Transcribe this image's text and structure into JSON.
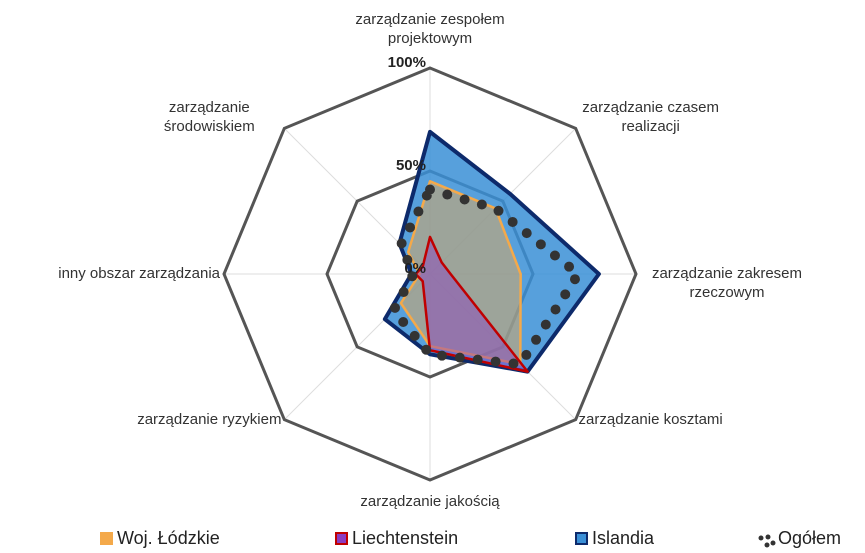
{
  "chart_data": {
    "type": "radar",
    "categories": [
      "zarządzanie zespołem projektowym",
      "zarządzanie czasem realizacji",
      "zarządzanie zakresem rzeczowym",
      "zarządzanie kosztami",
      "zarządzanie jakością",
      "zarządzanie ryzykiem",
      "inny obszar zarządzania",
      "zarządzanie środowiskiem"
    ],
    "ylim": [
      0,
      100
    ],
    "yticks": [
      {
        "value": 0,
        "label": "0%"
      },
      {
        "value": 50,
        "label": "50%"
      },
      {
        "value": 100,
        "label": "100%"
      }
    ],
    "series": [
      {
        "name": "Islandia",
        "color": "#0d2a6b",
        "fill": "#3a8fd6",
        "values": [
          69,
          55,
          82,
          67,
          39,
          31,
          9,
          21
        ]
      },
      {
        "name": "Woj. Łódzkie",
        "color": "#f4a94a",
        "fill": "#f4a94a",
        "values": [
          45,
          45,
          44,
          62,
          35,
          20,
          5,
          15
        ]
      },
      {
        "name": "Liechtenstein",
        "color": "#c00000",
        "fill": "#8a3cc0",
        "values": [
          18,
          8,
          10,
          67,
          37,
          5,
          7,
          5
        ]
      },
      {
        "name": "Ogółem",
        "color": "#333333",
        "line_style": "dotted",
        "values": [
          41,
          45,
          72,
          62,
          39,
          25,
          8,
          20
        ]
      }
    ],
    "legend_order": [
      1,
      2,
      0,
      3
    ],
    "legend": "bottom"
  }
}
